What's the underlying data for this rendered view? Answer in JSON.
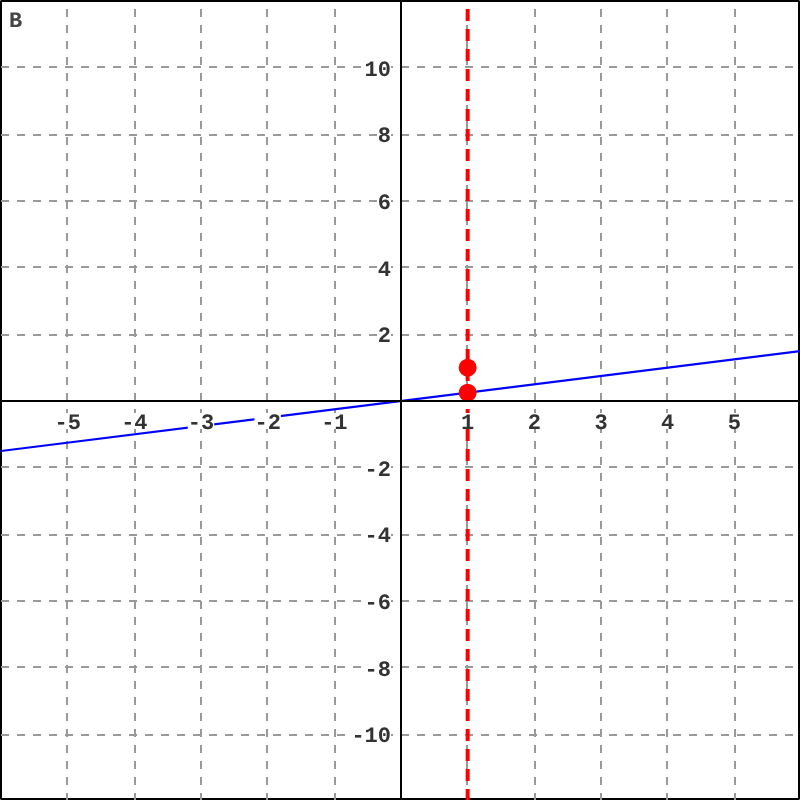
{
  "chart_data": {
    "type": "line",
    "title": "B",
    "xlim": [
      -6,
      6
    ],
    "ylim": [
      -12,
      12
    ],
    "xticks": [
      -5,
      -4,
      -3,
      -2,
      -1,
      1,
      2,
      3,
      4,
      5
    ],
    "yticks": [
      -10,
      -8,
      -6,
      -4,
      -2,
      2,
      4,
      6,
      8,
      10
    ],
    "grid": true,
    "series": [
      {
        "color": "#0000ff",
        "x": [
          -6,
          6
        ],
        "values": [
          -1.5,
          1.5
        ],
        "marker": "none"
      },
      {
        "type": "scatter",
        "color": "#ff0000",
        "x": [
          1,
          1
        ],
        "values": [
          1,
          0.25
        ],
        "marker": "circle"
      }
    ],
    "ref_lines": [
      {
        "axis": "x",
        "value": 1,
        "label": null,
        "color": "#ff0000",
        "line_style": "dashed"
      }
    ]
  }
}
